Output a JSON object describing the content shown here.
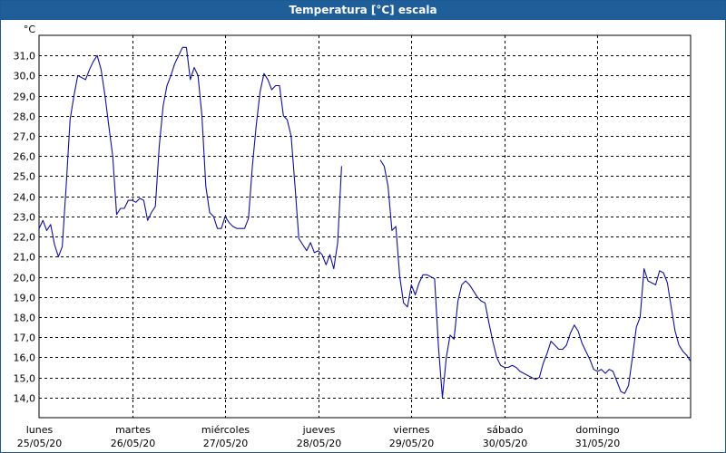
{
  "window": {
    "title": "Temperatura [°C] escala"
  },
  "chart_data": {
    "type": "line",
    "title": "Temperatura [°C] escala",
    "ylabel": "°C",
    "xlabel": "",
    "ylim": [
      13.0,
      32.0
    ],
    "yticks": [
      14.0,
      15.0,
      16.0,
      17.0,
      18.0,
      19.0,
      20.0,
      21.0,
      22.0,
      23.0,
      24.0,
      25.0,
      26.0,
      27.0,
      28.0,
      29.0,
      30.0,
      31.0
    ],
    "xlim": [
      0,
      168
    ],
    "xticks": [
      {
        "x": 0,
        "day": "lunes",
        "date": "25/05/20"
      },
      {
        "x": 24,
        "day": "martes",
        "date": "26/05/20"
      },
      {
        "x": 48,
        "day": "miércoles",
        "date": "27/05/20"
      },
      {
        "x": 72,
        "day": "jueves",
        "date": "28/05/20"
      },
      {
        "x": 96,
        "day": "viernes",
        "date": "29/05/20"
      },
      {
        "x": 120,
        "day": "sábado",
        "date": "30/05/20"
      },
      {
        "x": 144,
        "day": "domingo",
        "date": "31/05/20"
      }
    ],
    "grid": true,
    "line_color": "#1010a0",
    "series": [
      {
        "segments": [
          [
            [
              0,
              22.4
            ],
            [
              1,
              22.8
            ],
            [
              2,
              22.3
            ],
            [
              3,
              22.6
            ],
            [
              4,
              21.6
            ],
            [
              5,
              21.0
            ],
            [
              6,
              21.5
            ],
            [
              7,
              24.5
            ],
            [
              8,
              27.8
            ],
            [
              9,
              29.0
            ],
            [
              10,
              30.0
            ],
            [
              11,
              29.9
            ],
            [
              12,
              29.8
            ],
            [
              13,
              30.3
            ],
            [
              14,
              30.7
            ],
            [
              15,
              31.0
            ],
            [
              16,
              30.3
            ],
            [
              17,
              29.0
            ],
            [
              18,
              27.5
            ],
            [
              19,
              26.0
            ],
            [
              20,
              23.1
            ],
            [
              21,
              23.4
            ],
            [
              22,
              23.4
            ],
            [
              23,
              23.8
            ],
            [
              24,
              23.8
            ],
            [
              25,
              23.7
            ],
            [
              26,
              23.9
            ],
            [
              27,
              23.8
            ],
            [
              28,
              22.8
            ],
            [
              29,
              23.2
            ],
            [
              30,
              23.5
            ],
            [
              31,
              26.5
            ],
            [
              32,
              28.5
            ],
            [
              33,
              29.5
            ],
            [
              34,
              30.0
            ],
            [
              35,
              30.6
            ],
            [
              36,
              31.0
            ],
            [
              37,
              31.4
            ],
            [
              38,
              31.4
            ],
            [
              39,
              29.8
            ],
            [
              40,
              30.4
            ],
            [
              41,
              30.0
            ],
            [
              42,
              28.0
            ],
            [
              43,
              24.5
            ],
            [
              44,
              23.2
            ],
            [
              45,
              23.0
            ],
            [
              46,
              22.4
            ],
            [
              47,
              22.4
            ],
            [
              48,
              23.0
            ],
            [
              49,
              22.7
            ],
            [
              50,
              22.5
            ],
            [
              51,
              22.4
            ],
            [
              52,
              22.4
            ],
            [
              53,
              22.4
            ],
            [
              54,
              22.9
            ],
            [
              55,
              25.5
            ],
            [
              56,
              27.5
            ],
            [
              57,
              29.2
            ],
            [
              58,
              30.1
            ],
            [
              59,
              29.8
            ],
            [
              60,
              29.3
            ],
            [
              61,
              29.5
            ],
            [
              62,
              29.5
            ],
            [
              63,
              28.0
            ],
            [
              64,
              27.8
            ],
            [
              65,
              27.0
            ],
            [
              66,
              24.5
            ],
            [
              67,
              21.9
            ],
            [
              68,
              21.6
            ],
            [
              69,
              21.3
            ],
            [
              70,
              21.7
            ],
            [
              71,
              21.2
            ],
            [
              72,
              21.3
            ],
            [
              73,
              21.1
            ],
            [
              74,
              20.6
            ],
            [
              75,
              21.1
            ],
            [
              76,
              20.4
            ],
            [
              77,
              21.7
            ],
            [
              78,
              25.5
            ]
          ],
          [
            [
              88,
              25.8
            ],
            [
              89,
              25.5
            ],
            [
              90,
              24.5
            ],
            [
              91,
              22.3
            ],
            [
              92,
              22.5
            ],
            [
              93,
              20.0
            ],
            [
              94,
              18.7
            ],
            [
              95,
              18.5
            ],
            [
              96,
              19.6
            ],
            [
              97,
              19.1
            ],
            [
              98,
              19.7
            ],
            [
              99,
              20.1
            ],
            [
              100,
              20.1
            ],
            [
              101,
              20.0
            ],
            [
              102,
              19.9
            ],
            [
              103,
              16.5
            ],
            [
              104,
              14.0
            ],
            [
              105,
              16.0
            ],
            [
              106,
              17.1
            ],
            [
              107,
              16.9
            ],
            [
              108,
              18.8
            ],
            [
              109,
              19.6
            ],
            [
              110,
              19.8
            ],
            [
              111,
              19.6
            ],
            [
              112,
              19.3
            ],
            [
              113,
              19.0
            ],
            [
              114,
              18.8
            ],
            [
              115,
              18.7
            ],
            [
              116,
              17.7
            ],
            [
              117,
              16.8
            ],
            [
              118,
              16.0
            ],
            [
              119,
              15.6
            ],
            [
              120,
              15.5
            ],
            [
              121,
              15.5
            ],
            [
              122,
              15.6
            ],
            [
              123,
              15.5
            ],
            [
              124,
              15.3
            ],
            [
              125,
              15.2
            ],
            [
              126,
              15.1
            ],
            [
              127,
              15.0
            ],
            [
              128,
              14.9
            ],
            [
              129,
              15.0
            ],
            [
              130,
              15.7
            ],
            [
              131,
              16.2
            ],
            [
              132,
              16.8
            ],
            [
              133,
              16.6
            ],
            [
              134,
              16.4
            ],
            [
              135,
              16.4
            ],
            [
              136,
              16.6
            ],
            [
              137,
              17.2
            ],
            [
              138,
              17.6
            ],
            [
              139,
              17.3
            ],
            [
              140,
              16.7
            ],
            [
              141,
              16.3
            ],
            [
              142,
              15.9
            ],
            [
              143,
              15.4
            ],
            [
              144,
              15.3
            ],
            [
              145,
              15.4
            ],
            [
              146,
              15.2
            ],
            [
              147,
              15.4
            ],
            [
              148,
              15.3
            ],
            [
              149,
              14.8
            ],
            [
              150,
              14.3
            ],
            [
              151,
              14.2
            ],
            [
              152,
              14.6
            ],
            [
              153,
              16.0
            ],
            [
              154,
              17.5
            ],
            [
              155,
              18.0
            ],
            [
              156,
              20.4
            ],
            [
              157,
              19.8
            ],
            [
              158,
              19.7
            ],
            [
              159,
              19.6
            ],
            [
              160,
              20.3
            ],
            [
              161,
              20.2
            ],
            [
              162,
              19.7
            ],
            [
              163,
              18.5
            ],
            [
              164,
              17.3
            ],
            [
              165,
              16.6
            ],
            [
              166,
              16.3
            ],
            [
              167,
              16.1
            ],
            [
              168,
              15.8
            ]
          ]
        ]
      }
    ]
  }
}
